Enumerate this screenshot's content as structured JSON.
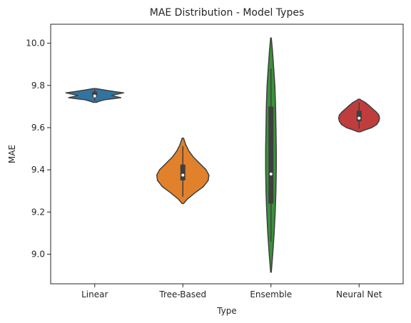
{
  "chart_data": {
    "type": "violin",
    "title": "MAE Distribution - Model Types",
    "xlabel": "Type",
    "ylabel": "MAE",
    "ylim": [
      8.86,
      10.09
    ],
    "yticks": [
      "9.0",
      "9.2",
      "9.4",
      "9.6",
      "9.8",
      "10.0"
    ],
    "ytick_values": [
      9.0,
      9.2,
      9.4,
      9.6,
      9.8,
      10.0
    ],
    "grid": false,
    "categories": [
      "Linear",
      "Tree-Based",
      "Ensemble",
      "Neural Net"
    ],
    "violins": [
      {
        "category": "Linear",
        "color": "#3274a1",
        "min": 9.72,
        "max": 9.785,
        "q1": 9.745,
        "median": 9.75,
        "q3": 9.77,
        "profile": [
          [
            9.72,
            0.05
          ],
          [
            9.725,
            0.12
          ],
          [
            9.732,
            0.28
          ],
          [
            9.738,
            0.55
          ],
          [
            9.742,
            0.74
          ],
          [
            9.748,
            0.58
          ],
          [
            9.753,
            0.48
          ],
          [
            9.758,
            0.62
          ],
          [
            9.765,
            0.82
          ],
          [
            9.771,
            0.55
          ],
          [
            9.777,
            0.32
          ],
          [
            9.782,
            0.14
          ],
          [
            9.785,
            0.04
          ]
        ]
      },
      {
        "category": "Tree-Based",
        "color": "#e1812c",
        "min": 9.24,
        "max": 9.55,
        "q1": 9.35,
        "median": 9.375,
        "q3": 9.425,
        "profile": [
          [
            9.24,
            0.02
          ],
          [
            9.26,
            0.12
          ],
          [
            9.29,
            0.34
          ],
          [
            9.32,
            0.58
          ],
          [
            9.35,
            0.72
          ],
          [
            9.375,
            0.74
          ],
          [
            9.4,
            0.66
          ],
          [
            9.43,
            0.48
          ],
          [
            9.46,
            0.3
          ],
          [
            9.49,
            0.17
          ],
          [
            9.52,
            0.08
          ],
          [
            9.55,
            0.02
          ]
        ]
      },
      {
        "category": "Ensemble",
        "color": "#3a923a",
        "min": 8.915,
        "max": 10.025,
        "q1": 9.24,
        "median": 9.38,
        "q3": 9.7,
        "whisker_low": 9.06,
        "whisker_high": 9.88,
        "profile": [
          [
            8.915,
            0.01
          ],
          [
            9.0,
            0.05
          ],
          [
            9.1,
            0.09
          ],
          [
            9.2,
            0.12
          ],
          [
            9.3,
            0.14
          ],
          [
            9.4,
            0.15
          ],
          [
            9.5,
            0.15
          ],
          [
            9.6,
            0.14
          ],
          [
            9.7,
            0.13
          ],
          [
            9.8,
            0.11
          ],
          [
            9.9,
            0.07
          ],
          [
            9.97,
            0.04
          ],
          [
            10.025,
            0.01
          ]
        ]
      },
      {
        "category": "Neural Net",
        "color": "#c03d3e",
        "min": 9.58,
        "max": 9.735,
        "q1": 9.63,
        "median": 9.645,
        "q3": 9.68,
        "profile": [
          [
            9.58,
            0.03
          ],
          [
            9.59,
            0.18
          ],
          [
            9.6,
            0.36
          ],
          [
            9.615,
            0.5
          ],
          [
            9.63,
            0.56
          ],
          [
            9.645,
            0.58
          ],
          [
            9.66,
            0.56
          ],
          [
            9.675,
            0.48
          ],
          [
            9.69,
            0.38
          ],
          [
            9.705,
            0.28
          ],
          [
            9.72,
            0.17
          ],
          [
            9.73,
            0.06
          ],
          [
            9.735,
            0.02
          ]
        ]
      }
    ]
  }
}
